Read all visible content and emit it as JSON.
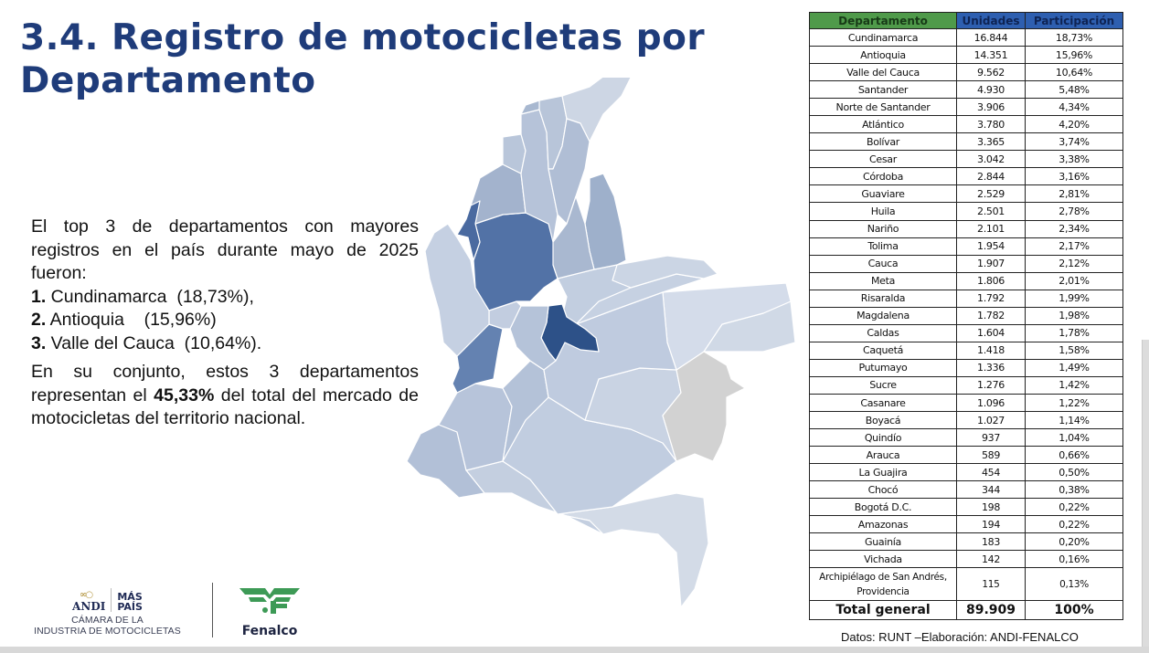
{
  "slide": {
    "title": "3.4. Registro de motocicletas por Departamento",
    "title_line1": "3.4. Registro de motocicletas por",
    "title_line2": "Departamento"
  },
  "body": {
    "intro": "El top 3 de departamentos con mayores registros en el país durante mayo de 2025 fueron:",
    "top3": [
      {
        "num": "1.",
        "text": " Cundinamarca  (18,73%),"
      },
      {
        "num": "2.",
        "text": " Antioquia    (15,96%)"
      },
      {
        "num": "3.",
        "text": " Valle del Cauca  (10,64%)."
      }
    ],
    "summary_before": "En su conjunto, estos 3 departamentos representan el ",
    "summary_bold": "45,33%",
    "summary_after": " del total del mercado de motocicletas del territorio nacional."
  },
  "table": {
    "headers": {
      "departamento": "Departamento",
      "unidades": "Unidades",
      "participacion": "Participación"
    },
    "rows": [
      {
        "departamento": "Cundinamarca",
        "unidades": "16.844",
        "participacion": "18,73%"
      },
      {
        "departamento": "Antioquia",
        "unidades": "14.351",
        "participacion": "15,96%"
      },
      {
        "departamento": "Valle del Cauca",
        "unidades": "9.562",
        "participacion": "10,64%"
      },
      {
        "departamento": "Santander",
        "unidades": "4.930",
        "participacion": "5,48%"
      },
      {
        "departamento": "Norte de Santander",
        "unidades": "3.906",
        "participacion": "4,34%"
      },
      {
        "departamento": "Atlántico",
        "unidades": "3.780",
        "participacion": "4,20%"
      },
      {
        "departamento": "Bolívar",
        "unidades": "3.365",
        "participacion": "3,74%"
      },
      {
        "departamento": "Cesar",
        "unidades": "3.042",
        "participacion": "3,38%"
      },
      {
        "departamento": "Córdoba",
        "unidades": "2.844",
        "participacion": "3,16%"
      },
      {
        "departamento": "Guaviare",
        "unidades": "2.529",
        "participacion": "2,81%"
      },
      {
        "departamento": "Huila",
        "unidades": "2.501",
        "participacion": "2,78%"
      },
      {
        "departamento": "Nariño",
        "unidades": "2.101",
        "participacion": "2,34%"
      },
      {
        "departamento": "Tolima",
        "unidades": "1.954",
        "participacion": "2,17%"
      },
      {
        "departamento": "Cauca",
        "unidades": "1.907",
        "participacion": "2,12%"
      },
      {
        "departamento": "Meta",
        "unidades": "1.806",
        "participacion": "2,01%"
      },
      {
        "departamento": "Risaralda",
        "unidades": "1.792",
        "participacion": "1,99%"
      },
      {
        "departamento": "Magdalena",
        "unidades": "1.782",
        "participacion": "1,98%"
      },
      {
        "departamento": "Caldas",
        "unidades": "1.604",
        "participacion": "1,78%"
      },
      {
        "departamento": "Caquetá",
        "unidades": "1.418",
        "participacion": "1,58%"
      },
      {
        "departamento": "Putumayo",
        "unidades": "1.336",
        "participacion": "1,49%"
      },
      {
        "departamento": "Sucre",
        "unidades": "1.276",
        "participacion": "1,42%"
      },
      {
        "departamento": "Casanare",
        "unidades": "1.096",
        "participacion": "1,22%"
      },
      {
        "departamento": "Boyacá",
        "unidades": "1.027",
        "participacion": "1,14%"
      },
      {
        "departamento": "Quindío",
        "unidades": "937",
        "participacion": "1,04%"
      },
      {
        "departamento": "Arauca",
        "unidades": "589",
        "participacion": "0,66%"
      },
      {
        "departamento": "La Guajira",
        "unidades": "454",
        "participacion": "0,50%"
      },
      {
        "departamento": "Chocó",
        "unidades": "344",
        "participacion": "0,38%"
      },
      {
        "departamento": "Bogotá D.C.",
        "unidades": "198",
        "participacion": "0,22%"
      },
      {
        "departamento": "Amazonas",
        "unidades": "194",
        "participacion": "0,22%"
      },
      {
        "departamento": "Guainía",
        "unidades": "183",
        "participacion": "0,20%"
      },
      {
        "departamento": "Vichada",
        "unidades": "142",
        "participacion": "0,16%"
      }
    ],
    "multi_row": {
      "departamento_line1": "Archipiélago de San Andrés,",
      "departamento_line2": "Providencia",
      "unidades": "115",
      "participacion": "0,13%"
    },
    "total": {
      "departamento": "Total general",
      "unidades": "89.909",
      "participacion": "100%"
    }
  },
  "source": "Datos: RUNT –Elaboración: ANDI-FENALCO",
  "logos": {
    "andi_word": "ANDI",
    "andi_rings": "∞○",
    "mas_line1": "MÁS",
    "mas_line2": "PAÍS",
    "andi_sub1": "CÁMARA DE LA",
    "andi_sub2": "INDUSTRIA DE MOTOCICLETAS",
    "fenalco": "Fenalco"
  },
  "map": {
    "legend": "Choropleth of motorcycle registrations by department",
    "colors": {
      "darkest": "#2b4f87",
      "dark": "#4d6fa3",
      "medium": "#6a86b3",
      "mid_light": "#9fb0cb",
      "light": "#b9c6da",
      "lighter": "#cbd5e4",
      "lightest": "#d6dde9",
      "no_data": "#d3d3d3"
    }
  },
  "chart_data": {
    "type": "table",
    "title": "Registro de motocicletas por Departamento",
    "columns": [
      "Departamento",
      "Unidades",
      "Participación"
    ],
    "categories": [
      "Cundinamarca",
      "Antioquia",
      "Valle del Cauca",
      "Santander",
      "Norte de Santander",
      "Atlántico",
      "Bolívar",
      "Cesar",
      "Córdoba",
      "Guaviare",
      "Huila",
      "Nariño",
      "Tolima",
      "Cauca",
      "Meta",
      "Risaralda",
      "Magdalena",
      "Caldas",
      "Caquetá",
      "Putumayo",
      "Sucre",
      "Casanare",
      "Boyacá",
      "Quindío",
      "Arauca",
      "La Guajira",
      "Chocó",
      "Bogotá D.C.",
      "Amazonas",
      "Guainía",
      "Vichada",
      "Archipiélago de San Andrés, Providencia"
    ],
    "series": [
      {
        "name": "Unidades",
        "values": [
          16844,
          14351,
          9562,
          4930,
          3906,
          3780,
          3365,
          3042,
          2844,
          2529,
          2501,
          2101,
          1954,
          1907,
          1806,
          1792,
          1782,
          1604,
          1418,
          1336,
          1276,
          1096,
          1027,
          937,
          589,
          454,
          344,
          198,
          194,
          183,
          142,
          115
        ]
      },
      {
        "name": "Participación (%)",
        "values": [
          18.73,
          15.96,
          10.64,
          5.48,
          4.34,
          4.2,
          3.74,
          3.38,
          3.16,
          2.81,
          2.78,
          2.34,
          2.17,
          2.12,
          2.01,
          1.99,
          1.98,
          1.78,
          1.58,
          1.49,
          1.42,
          1.22,
          1.14,
          1.04,
          0.66,
          0.5,
          0.38,
          0.22,
          0.22,
          0.2,
          0.16,
          0.13
        ]
      }
    ],
    "total": {
      "unidades": 89909,
      "participacion": 100
    }
  }
}
